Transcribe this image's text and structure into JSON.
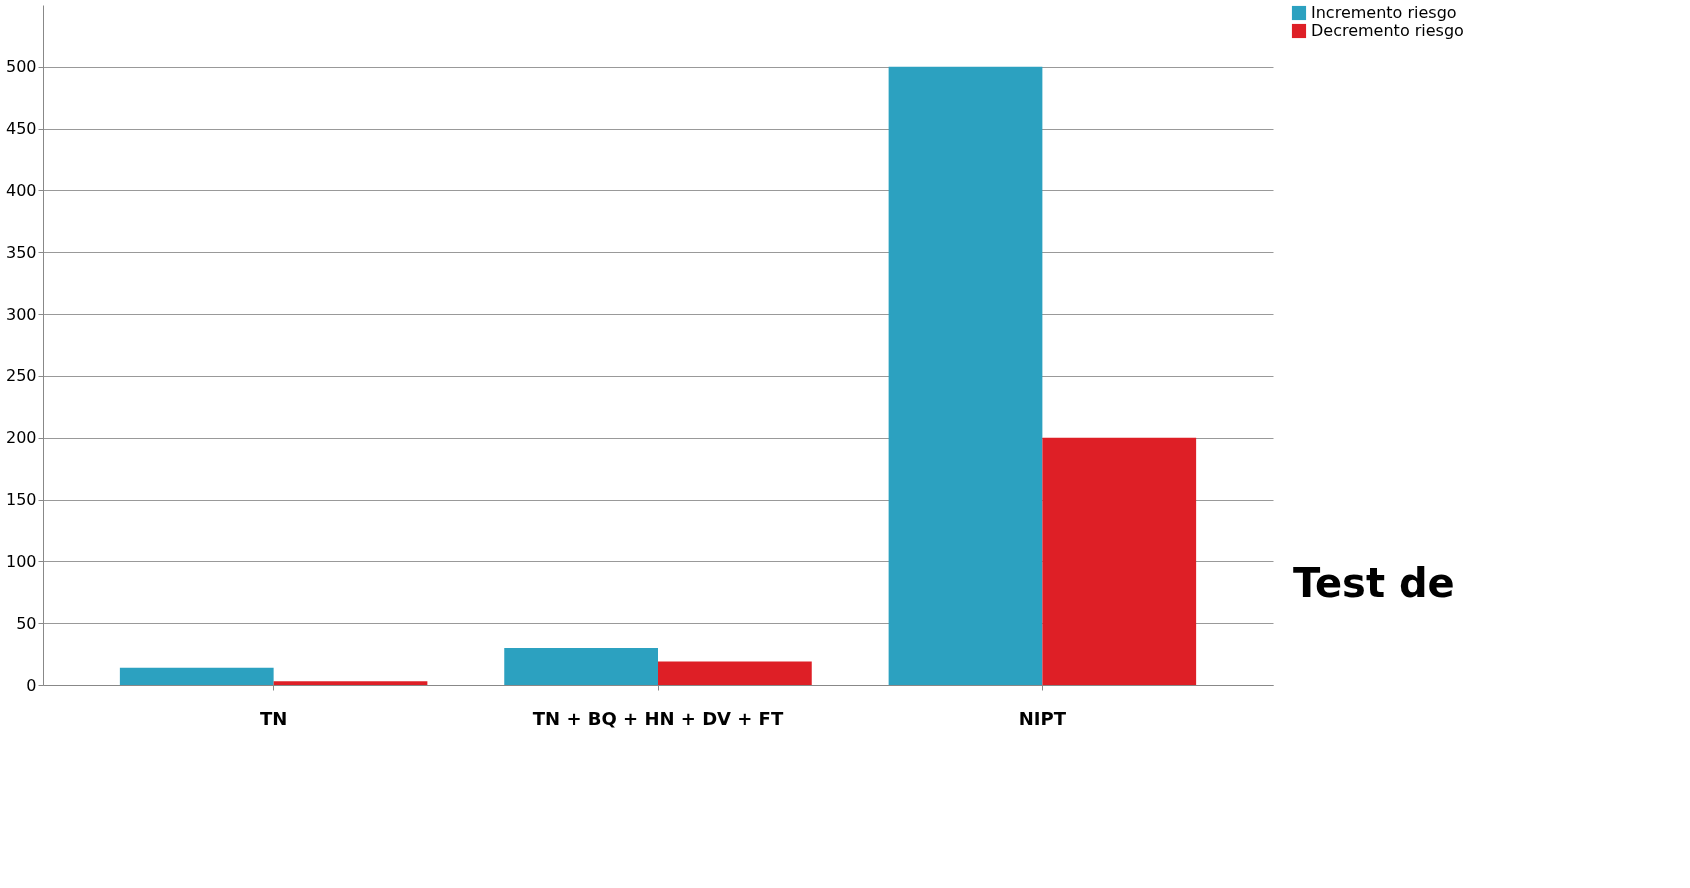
{
  "chart_data": {
    "type": "bar",
    "categories": [
      "TN",
      "TN + BQ + HN + DV + FT",
      "NIPT"
    ],
    "series": [
      {
        "name": "Incremento riesgo",
        "color": "#2ca1c0",
        "values": [
          14,
          30,
          500
        ]
      },
      {
        "name": "Decremento riesgo",
        "color": "#de1f26",
        "values": [
          3,
          19,
          200
        ]
      }
    ],
    "ylim": [
      0,
      550
    ],
    "yticks": [
      0,
      50,
      100,
      150,
      200,
      250,
      300,
      350,
      400,
      450,
      500
    ],
    "grid": "y",
    "legend": "right",
    "annotations": [
      "Test de"
    ]
  }
}
